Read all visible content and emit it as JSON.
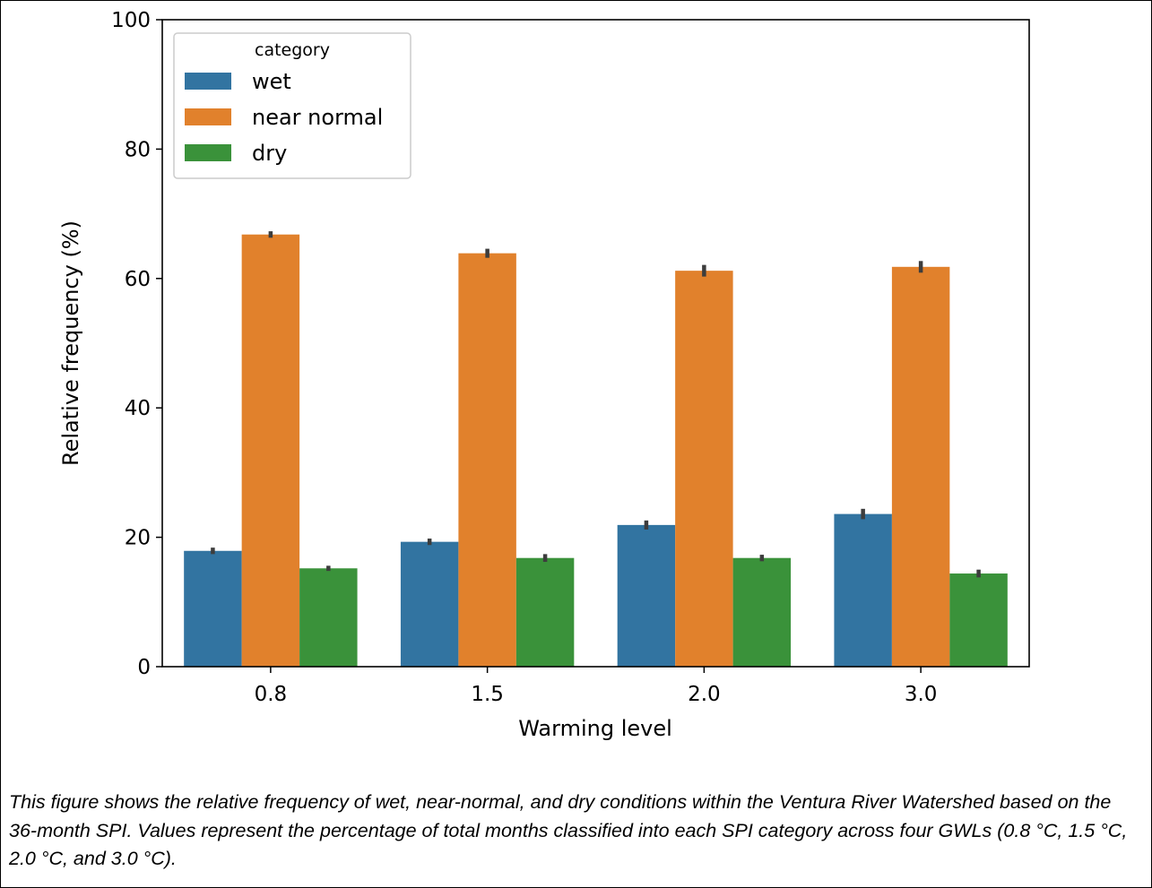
{
  "chart_data": {
    "type": "bar",
    "xlabel": "Warming level",
    "ylabel": "Relative frequency (%)",
    "ylim": [
      0,
      100
    ],
    "yticks": [
      0,
      20,
      40,
      60,
      80,
      100
    ],
    "categories": [
      "0.8",
      "1.5",
      "2.0",
      "3.0"
    ],
    "legend": {
      "title": "category",
      "placement": "upper-left"
    },
    "series": [
      {
        "name": "wet",
        "color": "#3274a1",
        "values": [
          17.9,
          19.3,
          21.9,
          23.6
        ],
        "err": [
          0.5,
          0.5,
          0.7,
          0.8
        ]
      },
      {
        "name": "near normal",
        "color": "#e1812c",
        "values": [
          66.8,
          63.9,
          61.2,
          61.8
        ],
        "err": [
          0.5,
          0.7,
          0.9,
          0.9
        ]
      },
      {
        "name": "dry",
        "color": "#3a923a",
        "values": [
          15.2,
          16.8,
          16.8,
          14.4
        ],
        "err": [
          0.4,
          0.6,
          0.5,
          0.6
        ]
      }
    ],
    "grid": false
  },
  "caption": "This figure shows the relative frequency of wet, near-normal, and dry conditions within the Ventura River Watershed based on the 36-month SPI. Values represent the percentage of total months classified into each SPI category across four GWLs (0.8 °C, 1.5 °C, 2.0 °C, and 3.0 °C)."
}
